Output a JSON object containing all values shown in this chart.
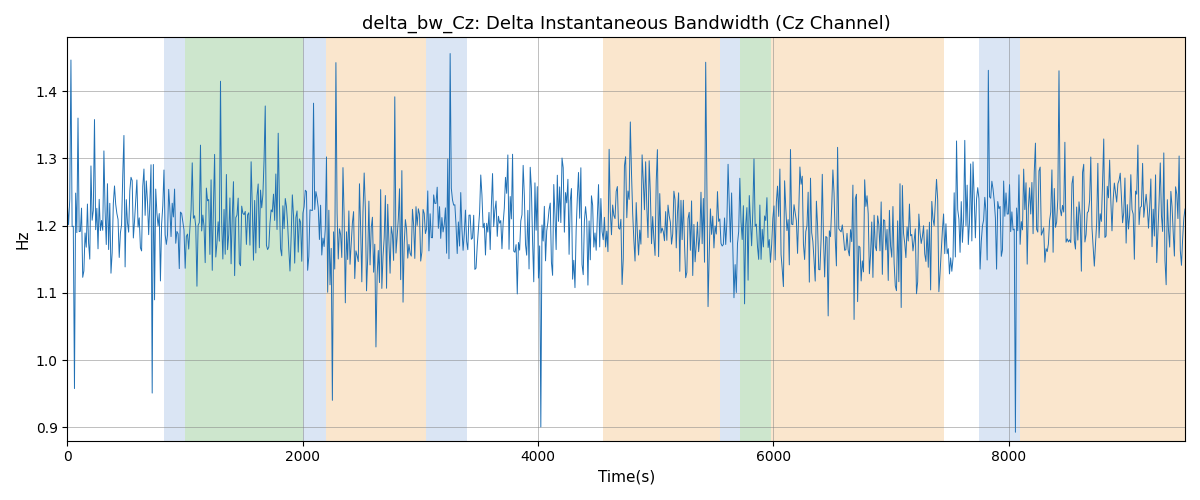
{
  "title": "delta_bw_Cz: Delta Instantaneous Bandwidth (Cz Channel)",
  "xlabel": "Time(s)",
  "ylabel": "Hz",
  "ylim": [
    0.88,
    1.48
  ],
  "xlim": [
    0,
    9500
  ],
  "line_color": "#2171b5",
  "line_width": 0.7,
  "background_regions": [
    {
      "xmin": 0,
      "xmax": 820,
      "color": "#ffffff",
      "alpha": 1.0
    },
    {
      "xmin": 820,
      "xmax": 1000,
      "color": "#aec6e8",
      "alpha": 0.45
    },
    {
      "xmin": 1000,
      "xmax": 2000,
      "color": "#90c890",
      "alpha": 0.45
    },
    {
      "xmin": 2000,
      "xmax": 2200,
      "color": "#aec6e8",
      "alpha": 0.45
    },
    {
      "xmin": 2200,
      "xmax": 3050,
      "color": "#f5c890",
      "alpha": 0.45
    },
    {
      "xmin": 3050,
      "xmax": 3400,
      "color": "#aec6e8",
      "alpha": 0.45
    },
    {
      "xmin": 3400,
      "xmax": 4550,
      "color": "#ffffff",
      "alpha": 1.0
    },
    {
      "xmin": 4550,
      "xmax": 5550,
      "color": "#f5c890",
      "alpha": 0.45
    },
    {
      "xmin": 5550,
      "xmax": 5720,
      "color": "#aec6e8",
      "alpha": 0.45
    },
    {
      "xmin": 5720,
      "xmax": 5980,
      "color": "#90c890",
      "alpha": 0.45
    },
    {
      "xmin": 5980,
      "xmax": 7450,
      "color": "#f5c890",
      "alpha": 0.45
    },
    {
      "xmin": 7450,
      "xmax": 7750,
      "color": "#ffffff",
      "alpha": 1.0
    },
    {
      "xmin": 7750,
      "xmax": 8100,
      "color": "#aec6e8",
      "alpha": 0.45
    },
    {
      "xmin": 8100,
      "xmax": 9500,
      "color": "#f5c890",
      "alpha": 0.45
    }
  ],
  "seed": 42,
  "n_points": 950,
  "mean": 1.2,
  "std": 0.048,
  "yticks": [
    0.9,
    1.0,
    1.1,
    1.2,
    1.3,
    1.4
  ],
  "xticks": [
    0,
    2000,
    4000,
    6000,
    8000
  ]
}
